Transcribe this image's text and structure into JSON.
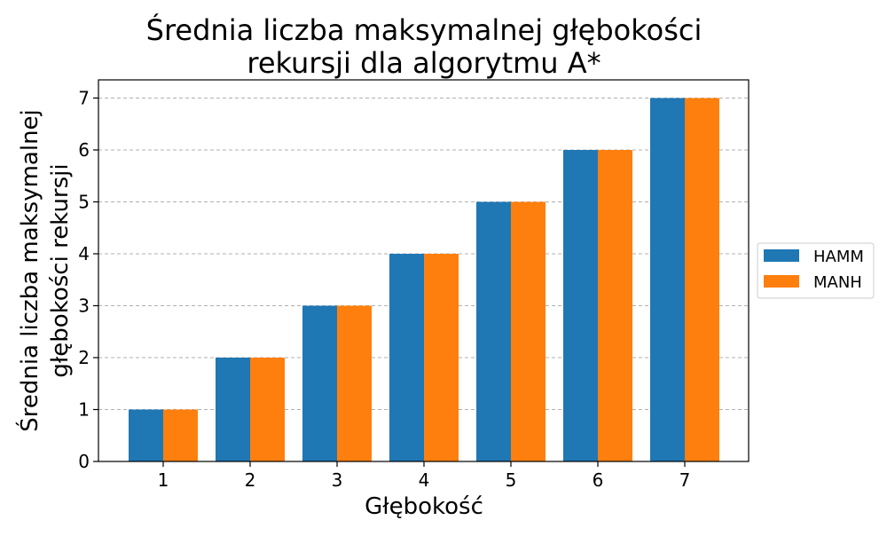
{
  "chart_data": {
    "type": "bar",
    "title_lines": [
      "Średnia liczba maksymalnej głębokości",
      "rekursji dla algorytmu A*"
    ],
    "xlabel": "Głębokość",
    "ylabel_lines": [
      "Średnia liczba maksymalnej",
      "głębokości rekursji"
    ],
    "categories": [
      "1",
      "2",
      "3",
      "4",
      "5",
      "6",
      "7"
    ],
    "series": [
      {
        "name": "HAMM",
        "color": "#1f77b4",
        "values": [
          1,
          2,
          3,
          4,
          5,
          6,
          7
        ]
      },
      {
        "name": "MANH",
        "color": "#ff7f0e",
        "values": [
          1,
          2,
          3,
          4,
          5,
          6,
          7
        ]
      }
    ],
    "ylim": [
      0,
      7.35
    ],
    "yticks": [
      0,
      1,
      2,
      3,
      4,
      5,
      6,
      7
    ],
    "grid": "y-dashed",
    "legend_position": "right-outside"
  }
}
